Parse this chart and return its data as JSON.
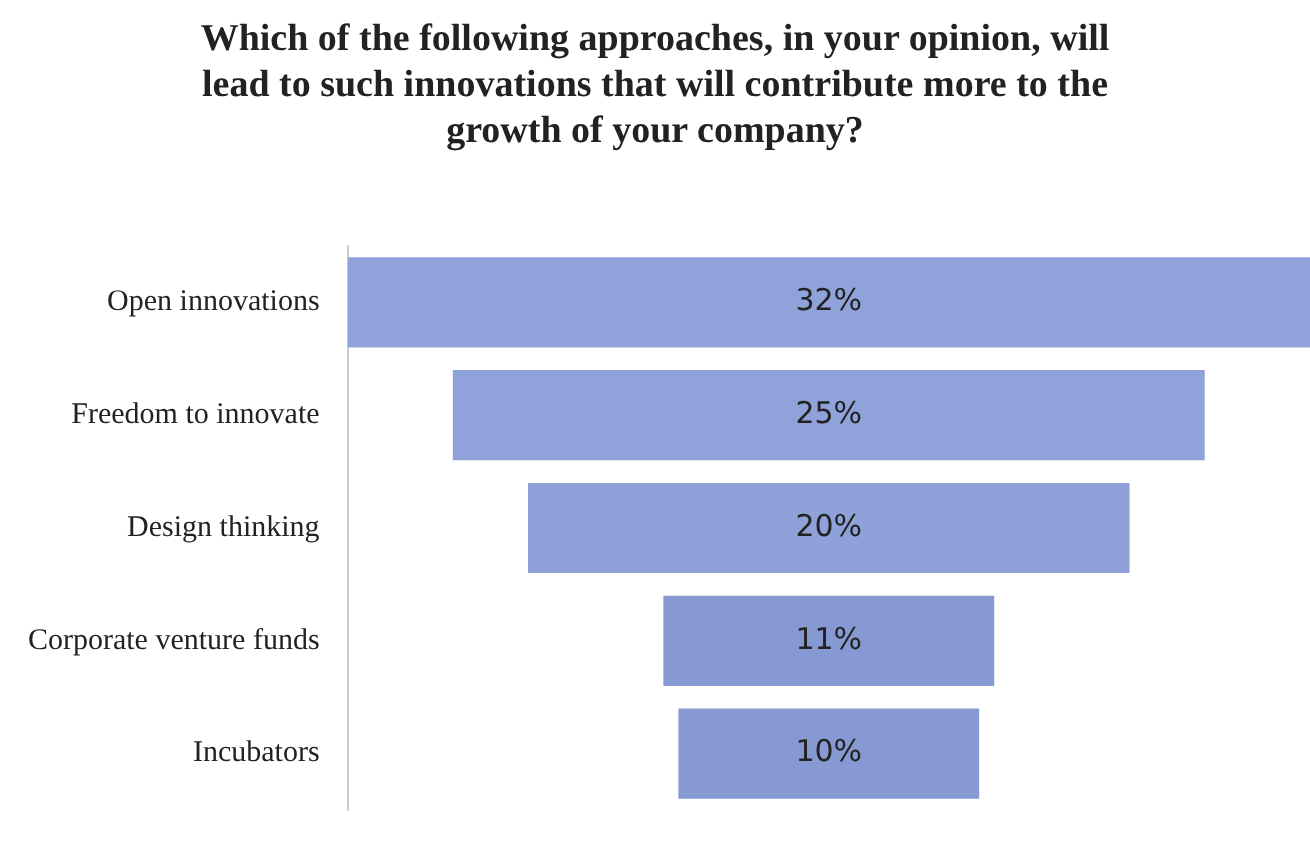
{
  "chart_data": {
    "type": "other",
    "title": "Which of the following approaches, in your opinion, will lead to such innovations that will contribute more to the growth of your company?",
    "categories": [
      "Open innovations",
      "Freedom to innovate",
      "Design thinking",
      "Corporate venture funds",
      "Incubators"
    ],
    "values": [
      32,
      25,
      20,
      11,
      10
    ],
    "value_labels": [
      "32%",
      "25%",
      "20%",
      "11%",
      "10%"
    ],
    "colors": [
      "#8fa2da",
      "#8fa2da",
      "#8ea1d8",
      "#8699d3",
      "#8699d3"
    ]
  }
}
